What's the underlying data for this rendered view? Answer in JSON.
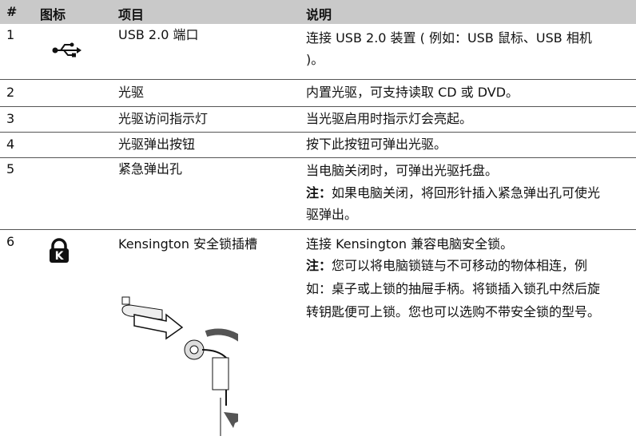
{
  "table": {
    "headers": [
      "#",
      "图标",
      "项目",
      "说明"
    ],
    "rows": [
      {
        "num": "1",
        "item": "USB 2.0 端口",
        "desc": "连接 USB 2.0 装置 ( 例如：USB 鼠标、USB 相机 )。"
      },
      {
        "num": "2",
        "item": "光驱",
        "desc": "内置光驱，可支持读取 CD 或 DVD。"
      },
      {
        "num": "3",
        "item": "光驱访问指示灯",
        "desc": "当光驱启用时指示灯会亮起。"
      },
      {
        "num": "4",
        "item": "光驱弹出按钮",
        "desc": "按下此按钮可弹出光驱。"
      },
      {
        "num": "5",
        "item": "紧急弹出孔",
        "desc": "当电脑关闭时，可弹出光驱托盘。",
        "note_label": "注：",
        "note_text": "如果电脑关闭，将回形针插入紧急弹出孔可使光驱弹出。"
      },
      {
        "num": "6",
        "item": "Kensington 安全锁插槽",
        "desc": "连接 Kensington 兼容电脑安全锁。",
        "note_label": "注：",
        "note_text": "您可以将电脑锁链与不可移动的物体相连，例如：桌子或上锁的抽屉手柄。将锁插入锁孔中然后旋转钥匙便可上锁。您也可以选购不带安全锁的型号。"
      }
    ]
  }
}
